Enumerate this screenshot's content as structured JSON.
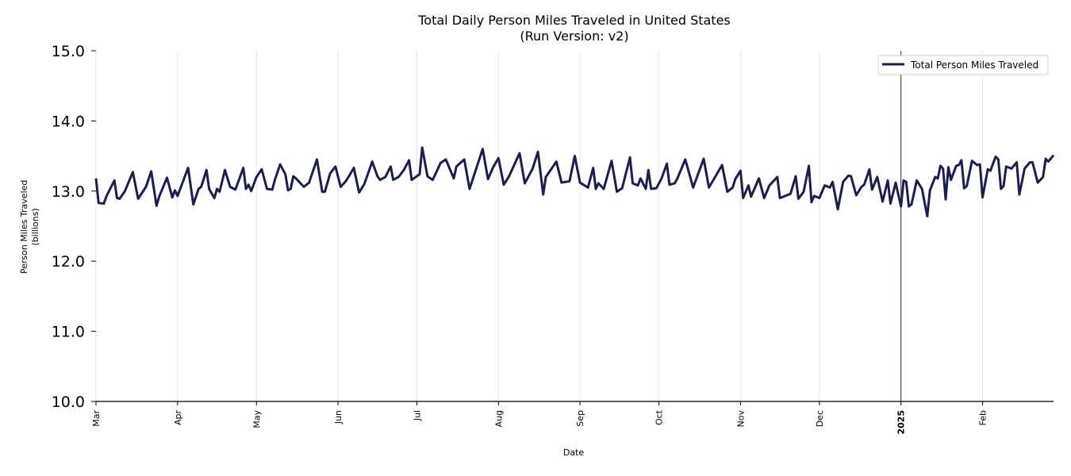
{
  "chart_data": {
    "type": "line",
    "title": "Total Daily Person Miles Traveled in United States",
    "subtitle": "(Run Version: v2)",
    "xlabel": "Date",
    "ylabel_line1": "Person Miles Traveled",
    "ylabel_line2": "(billions)",
    "xlim": [
      "2024-03-01",
      "2025-02-28"
    ],
    "ylim": [
      10.0,
      15.0
    ],
    "yticks": [
      "10.0",
      "11.0",
      "12.0",
      "13.0",
      "14.0",
      "15.0"
    ],
    "xticks": [
      {
        "date": "2024-03-01",
        "label": "Mar"
      },
      {
        "date": "2024-04-01",
        "label": "Apr"
      },
      {
        "date": "2024-05-01",
        "label": "May"
      },
      {
        "date": "2024-06-01",
        "label": "Jun"
      },
      {
        "date": "2024-07-01",
        "label": "Jul"
      },
      {
        "date": "2024-08-01",
        "label": "Aug"
      },
      {
        "date": "2024-09-01",
        "label": "Sep"
      },
      {
        "date": "2024-10-01",
        "label": "Oct"
      },
      {
        "date": "2024-11-01",
        "label": "Nov"
      },
      {
        "date": "2024-12-01",
        "label": "Dec"
      },
      {
        "date": "2025-01-01",
        "label": "2025",
        "bold": true
      },
      {
        "date": "2025-02-01",
        "label": "Feb"
      }
    ],
    "grid": "vertical at month ticks",
    "year_marker": "2025-01-01",
    "legend": {
      "position": "top-right",
      "label": "Total Person Miles Traveled"
    },
    "line_color": "#1c1f4e",
    "series": [
      {
        "name": "Total Person Miles Traveled",
        "points": [
          [
            "2024-03-01",
            13.18
          ],
          [
            "2024-03-02",
            12.83
          ],
          [
            "2024-03-04",
            12.82
          ],
          [
            "2024-03-05",
            12.93
          ],
          [
            "2024-03-08",
            13.15
          ],
          [
            "2024-03-09",
            12.9
          ],
          [
            "2024-03-10",
            12.89
          ],
          [
            "2024-03-12",
            13.0
          ],
          [
            "2024-03-15",
            13.27
          ],
          [
            "2024-03-17",
            12.89
          ],
          [
            "2024-03-20",
            13.06
          ],
          [
            "2024-03-22",
            13.28
          ],
          [
            "2024-03-24",
            12.79
          ],
          [
            "2024-03-25",
            12.92
          ],
          [
            "2024-03-28",
            13.19
          ],
          [
            "2024-03-30",
            12.91
          ],
          [
            "2024-03-31",
            13.01
          ],
          [
            "2024-04-01",
            12.93
          ],
          [
            "2024-04-05",
            13.33
          ],
          [
            "2024-04-07",
            12.81
          ],
          [
            "2024-04-09",
            13.03
          ],
          [
            "2024-04-10",
            13.06
          ],
          [
            "2024-04-12",
            13.3
          ],
          [
            "2024-04-13",
            13.03
          ],
          [
            "2024-04-15",
            12.9
          ],
          [
            "2024-04-16",
            13.03
          ],
          [
            "2024-04-17",
            12.99
          ],
          [
            "2024-04-19",
            13.3
          ],
          [
            "2024-04-21",
            13.06
          ],
          [
            "2024-04-23",
            13.02
          ],
          [
            "2024-04-26",
            13.33
          ],
          [
            "2024-04-27",
            13.03
          ],
          [
            "2024-04-28",
            13.09
          ],
          [
            "2024-04-29",
            13.0
          ],
          [
            "2024-05-01",
            13.2
          ],
          [
            "2024-05-03",
            13.31
          ],
          [
            "2024-05-05",
            13.03
          ],
          [
            "2024-05-07",
            13.02
          ],
          [
            "2024-05-08",
            13.16
          ],
          [
            "2024-05-10",
            13.38
          ],
          [
            "2024-05-12",
            13.24
          ],
          [
            "2024-05-13",
            13.01
          ],
          [
            "2024-05-14",
            13.03
          ],
          [
            "2024-05-15",
            13.21
          ],
          [
            "2024-05-16",
            13.18
          ],
          [
            "2024-05-19",
            13.06
          ],
          [
            "2024-05-21",
            13.12
          ],
          [
            "2024-05-24",
            13.45
          ],
          [
            "2024-05-26",
            12.99
          ],
          [
            "2024-05-27",
            12.99
          ],
          [
            "2024-05-29",
            13.25
          ],
          [
            "2024-05-31",
            13.35
          ],
          [
            "2024-06-02",
            13.06
          ],
          [
            "2024-06-04",
            13.14
          ],
          [
            "2024-06-07",
            13.33
          ],
          [
            "2024-06-09",
            12.98
          ],
          [
            "2024-06-11",
            13.1
          ],
          [
            "2024-06-14",
            13.42
          ],
          [
            "2024-06-16",
            13.21
          ],
          [
            "2024-06-17",
            13.16
          ],
          [
            "2024-06-19",
            13.2
          ],
          [
            "2024-06-21",
            13.35
          ],
          [
            "2024-06-22",
            13.16
          ],
          [
            "2024-06-24",
            13.2
          ],
          [
            "2024-06-26",
            13.3
          ],
          [
            "2024-06-28",
            13.44
          ],
          [
            "2024-06-29",
            13.16
          ],
          [
            "2024-07-02",
            13.24
          ],
          [
            "2024-07-03",
            13.62
          ],
          [
            "2024-07-05",
            13.21
          ],
          [
            "2024-07-07",
            13.16
          ],
          [
            "2024-07-10",
            13.4
          ],
          [
            "2024-07-12",
            13.45
          ],
          [
            "2024-07-15",
            13.18
          ],
          [
            "2024-07-16",
            13.35
          ],
          [
            "2024-07-19",
            13.45
          ],
          [
            "2024-07-21",
            13.03
          ],
          [
            "2024-07-26",
            13.6
          ],
          [
            "2024-07-28",
            13.17
          ],
          [
            "2024-07-30",
            13.34
          ],
          [
            "2024-08-01",
            13.47
          ],
          [
            "2024-08-03",
            13.09
          ],
          [
            "2024-08-05",
            13.21
          ],
          [
            "2024-08-09",
            13.54
          ],
          [
            "2024-08-11",
            13.11
          ],
          [
            "2024-08-14",
            13.32
          ],
          [
            "2024-08-16",
            13.56
          ],
          [
            "2024-08-18",
            12.95
          ],
          [
            "2024-08-19",
            13.2
          ],
          [
            "2024-08-23",
            13.42
          ],
          [
            "2024-08-25",
            13.12
          ],
          [
            "2024-08-28",
            13.14
          ],
          [
            "2024-08-30",
            13.5
          ],
          [
            "2024-09-01",
            13.12
          ],
          [
            "2024-09-04",
            13.05
          ],
          [
            "2024-09-06",
            13.33
          ],
          [
            "2024-09-07",
            13.03
          ],
          [
            "2024-09-08",
            13.11
          ],
          [
            "2024-09-10",
            13.03
          ],
          [
            "2024-09-13",
            13.43
          ],
          [
            "2024-09-15",
            12.99
          ],
          [
            "2024-09-17",
            13.04
          ],
          [
            "2024-09-20",
            13.48
          ],
          [
            "2024-09-21",
            13.11
          ],
          [
            "2024-09-23",
            13.08
          ],
          [
            "2024-09-24",
            13.18
          ],
          [
            "2024-09-26",
            13.03
          ],
          [
            "2024-09-27",
            13.3
          ],
          [
            "2024-09-28",
            13.03
          ],
          [
            "2024-09-30",
            13.04
          ],
          [
            "2024-10-02",
            13.18
          ],
          [
            "2024-10-04",
            13.39
          ],
          [
            "2024-10-05",
            13.09
          ],
          [
            "2024-10-07",
            13.11
          ],
          [
            "2024-10-08",
            13.18
          ],
          [
            "2024-10-11",
            13.45
          ],
          [
            "2024-10-14",
            13.05
          ],
          [
            "2024-10-18",
            13.46
          ],
          [
            "2024-10-20",
            13.05
          ],
          [
            "2024-10-25",
            13.37
          ],
          [
            "2024-10-27",
            12.99
          ],
          [
            "2024-10-29",
            13.05
          ],
          [
            "2024-10-30",
            13.17
          ],
          [
            "2024-11-01",
            13.29
          ],
          [
            "2024-11-02",
            12.9
          ],
          [
            "2024-11-04",
            13.08
          ],
          [
            "2024-11-05",
            12.92
          ],
          [
            "2024-11-08",
            13.18
          ],
          [
            "2024-11-10",
            12.9
          ],
          [
            "2024-11-12",
            13.08
          ],
          [
            "2024-11-15",
            13.2
          ],
          [
            "2024-11-16",
            12.9
          ],
          [
            "2024-11-20",
            12.96
          ],
          [
            "2024-11-22",
            13.21
          ],
          [
            "2024-11-23",
            12.89
          ],
          [
            "2024-11-25",
            12.99
          ],
          [
            "2024-11-27",
            13.36
          ],
          [
            "2024-11-28",
            12.84
          ],
          [
            "2024-11-29",
            12.93
          ],
          [
            "2024-12-01",
            12.9
          ],
          [
            "2024-12-03",
            13.08
          ],
          [
            "2024-12-05",
            13.05
          ],
          [
            "2024-12-06",
            13.13
          ],
          [
            "2024-12-08",
            12.74
          ],
          [
            "2024-12-10",
            13.13
          ],
          [
            "2024-12-12",
            13.22
          ],
          [
            "2024-12-13",
            13.21
          ],
          [
            "2024-12-15",
            12.94
          ],
          [
            "2024-12-17",
            13.06
          ],
          [
            "2024-12-18",
            13.09
          ],
          [
            "2024-12-20",
            13.31
          ],
          [
            "2024-12-21",
            13.02
          ],
          [
            "2024-12-23",
            13.2
          ],
          [
            "2024-12-25",
            12.85
          ],
          [
            "2024-12-27",
            13.15
          ],
          [
            "2024-12-28",
            12.82
          ],
          [
            "2024-12-30",
            13.12
          ],
          [
            "2025-01-01",
            12.78
          ],
          [
            "2025-01-02",
            13.15
          ],
          [
            "2025-01-03",
            13.13
          ],
          [
            "2025-01-04",
            12.78
          ],
          [
            "2025-01-05",
            12.81
          ],
          [
            "2025-01-07",
            13.15
          ],
          [
            "2025-01-09",
            13.03
          ],
          [
            "2025-01-11",
            12.64
          ],
          [
            "2025-01-12",
            13.01
          ],
          [
            "2025-01-14",
            13.2
          ],
          [
            "2025-01-15",
            13.18
          ],
          [
            "2025-01-16",
            13.36
          ],
          [
            "2025-01-17",
            13.32
          ],
          [
            "2025-01-18",
            12.88
          ],
          [
            "2025-01-19",
            13.34
          ],
          [
            "2025-01-20",
            13.16
          ],
          [
            "2025-01-22",
            13.36
          ],
          [
            "2025-01-23",
            13.37
          ],
          [
            "2025-01-24",
            13.44
          ],
          [
            "2025-01-25",
            13.04
          ],
          [
            "2025-01-26",
            13.07
          ],
          [
            "2025-01-28",
            13.43
          ],
          [
            "2025-01-30",
            13.37
          ],
          [
            "2025-01-31",
            13.38
          ],
          [
            "2025-02-01",
            12.91
          ],
          [
            "2025-02-03",
            13.31
          ],
          [
            "2025-02-04",
            13.29
          ],
          [
            "2025-02-06",
            13.49
          ],
          [
            "2025-02-07",
            13.45
          ],
          [
            "2025-02-08",
            13.03
          ],
          [
            "2025-02-09",
            13.07
          ],
          [
            "2025-02-10",
            13.35
          ],
          [
            "2025-02-12",
            13.32
          ],
          [
            "2025-02-14",
            13.41
          ],
          [
            "2025-02-15",
            12.95
          ],
          [
            "2025-02-17",
            13.32
          ],
          [
            "2025-02-19",
            13.41
          ],
          [
            "2025-02-20",
            13.41
          ],
          [
            "2025-02-22",
            13.12
          ],
          [
            "2025-02-24",
            13.2
          ],
          [
            "2025-02-25",
            13.46
          ],
          [
            "2025-02-26",
            13.42
          ],
          [
            "2025-02-28",
            13.51
          ]
        ]
      }
    ]
  }
}
